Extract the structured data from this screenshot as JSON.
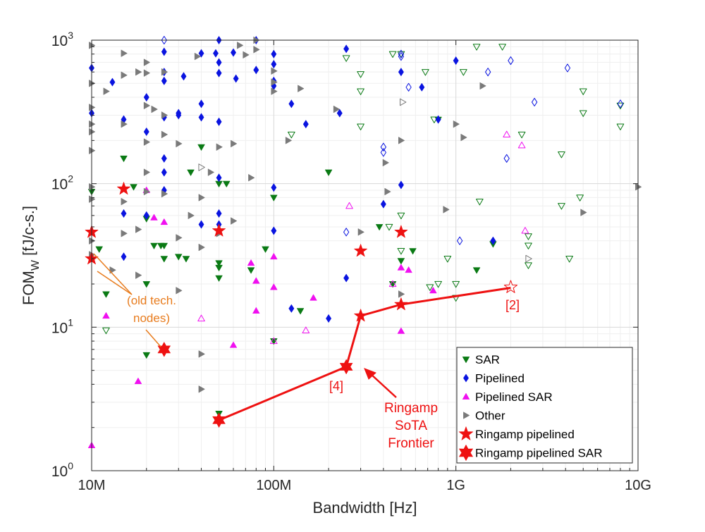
{
  "chart_data": {
    "type": "scatter",
    "title": "",
    "xlabel": "Bandwidth [Hz]",
    "ylabel_main": "FOM",
    "ylabel_sub": "W",
    "ylabel_units": " [fJ/c-s.]",
    "x_scale": "log",
    "y_scale": "log",
    "xlim": [
      10000000,
      10000000000
    ],
    "ylim": [
      1,
      1000
    ],
    "grid": true,
    "x_ticks": [
      {
        "value": 10000000,
        "label": "10M"
      },
      {
        "value": 100000000,
        "label": "100M"
      },
      {
        "value": 1000000000,
        "label": "1G"
      },
      {
        "value": 10000000000,
        "label": "10G"
      }
    ],
    "y_ticks": [
      {
        "value": 1,
        "base": "10",
        "exp": "0"
      },
      {
        "value": 10,
        "base": "10",
        "exp": "1"
      },
      {
        "value": 100,
        "base": "10",
        "exp": "2"
      },
      {
        "value": 1000,
        "base": "10",
        "exp": "3"
      }
    ],
    "legend_position": "bottom-right",
    "series": [
      {
        "name": "SAR",
        "marker": "triangle-down",
        "color": "#0a7a14",
        "points": [
          [
            10000000.0,
            88
          ],
          [
            11000000.0,
            35
          ],
          [
            12000000.0,
            17
          ],
          [
            17000000.0,
            95
          ],
          [
            20000000.0,
            57
          ],
          [
            20000000.0,
            20
          ],
          [
            22000000.0,
            37
          ],
          [
            24000000.0,
            37
          ],
          [
            25000000.0,
            37
          ],
          [
            25000000.0,
            30
          ],
          [
            20000000.0,
            6.4
          ],
          [
            30000000.0,
            31
          ],
          [
            33000000.0,
            30
          ],
          [
            35000000.0,
            120
          ],
          [
            40000000.0,
            180
          ],
          [
            50000000.0,
            28
          ],
          [
            50000000.0,
            26
          ],
          [
            50000000.0,
            22
          ],
          [
            50000000.0,
            2.5
          ],
          [
            50000000.0,
            100
          ],
          [
            55000000.0,
            100
          ],
          [
            75000000.0,
            25
          ],
          [
            90000000.0,
            35
          ],
          [
            100000000.0,
            80
          ],
          [
            100000000.0,
            8
          ],
          [
            140000000.0,
            13
          ],
          [
            200000000.0,
            120
          ],
          [
            380000000.0,
            50
          ],
          [
            450000000.0,
            20
          ],
          [
            500000000.0,
            29
          ],
          [
            580000000.0,
            34
          ],
          [
            800000000.0,
            280
          ],
          [
            1300000000.0,
            25
          ],
          [
            1600000000.0,
            38
          ],
          [
            15000000.0,
            150
          ]
        ],
        "hollow_points": [
          [
            12000000.0,
            9.5
          ],
          [
            125000000.0,
            220
          ],
          [
            250000000.0,
            750
          ],
          [
            300000000.0,
            580
          ],
          [
            300000000.0,
            440
          ],
          [
            300000000.0,
            250
          ],
          [
            450000000.0,
            800
          ],
          [
            500000000.0,
            800
          ],
          [
            500000000.0,
            60
          ],
          [
            500000000.0,
            34
          ],
          [
            680000000.0,
            600
          ],
          [
            720000000.0,
            19
          ],
          [
            760000000.0,
            280
          ],
          [
            800000000.0,
            20
          ],
          [
            900000000.0,
            30
          ],
          [
            1000000000.0,
            20
          ],
          [
            1000000000.0,
            16
          ],
          [
            1100000000.0,
            600
          ],
          [
            1300000000.0,
            900
          ],
          [
            1800000000.0,
            900
          ],
          [
            2300000000.0,
            220
          ],
          [
            2500000000.0,
            43
          ],
          [
            2500000000.0,
            37
          ],
          [
            2500000000.0,
            27
          ],
          [
            3800000000.0,
            160
          ],
          [
            3800000000.0,
            70
          ],
          [
            4200000000.0,
            30
          ],
          [
            4800000000.0,
            80
          ],
          [
            5000000000.0,
            440
          ],
          [
            5000000000.0,
            310
          ],
          [
            8000000000.0,
            250
          ],
          [
            8000000000.0,
            350
          ],
          [
            1350000000.0,
            75
          ],
          [
            430000000.0,
            50
          ]
        ]
      },
      {
        "name": "Pipelined",
        "marker": "diamond",
        "color": "#0a14e0",
        "points": [
          [
            10000000.0,
            640
          ],
          [
            10000000.0,
            310
          ],
          [
            13000000.0,
            510
          ],
          [
            15000000.0,
            280
          ],
          [
            15000000.0,
            62
          ],
          [
            15000000.0,
            31
          ],
          [
            20000000.0,
            400
          ],
          [
            20000000.0,
            60
          ],
          [
            25000000.0,
            830
          ],
          [
            25000000.0,
            600
          ],
          [
            25000000.0,
            520
          ],
          [
            25000000.0,
            290
          ],
          [
            25000000.0,
            150
          ],
          [
            25000000.0,
            120
          ],
          [
            25000000.0,
            90
          ],
          [
            30000000.0,
            310
          ],
          [
            32000000.0,
            560
          ],
          [
            40000000.0,
            810
          ],
          [
            40000000.0,
            360
          ],
          [
            40000000.0,
            290
          ],
          [
            48000000.0,
            810
          ],
          [
            50000000.0,
            1000
          ],
          [
            50000000.0,
            700
          ],
          [
            50000000.0,
            590
          ],
          [
            50000000.0,
            270
          ],
          [
            50000000.0,
            110
          ],
          [
            50000000.0,
            62
          ],
          [
            50000000.0,
            52
          ],
          [
            60000000.0,
            820
          ],
          [
            62000000.0,
            540
          ],
          [
            80000000.0,
            1000
          ],
          [
            80000000.0,
            620
          ],
          [
            100000000.0,
            800
          ],
          [
            100000000.0,
            680
          ],
          [
            100000000.0,
            520
          ],
          [
            100000000.0,
            480
          ],
          [
            100000000.0,
            47
          ],
          [
            100000000.0,
            94
          ],
          [
            125000000.0,
            360
          ],
          [
            125000000.0,
            13.5
          ],
          [
            150000000.0,
            260
          ],
          [
            200000000.0,
            11.5
          ],
          [
            230000000.0,
            310
          ],
          [
            250000000.0,
            870
          ],
          [
            250000000.0,
            22
          ],
          [
            400000000.0,
            72
          ],
          [
            500000000.0,
            600
          ],
          [
            500000000.0,
            98
          ],
          [
            650000000.0,
            470
          ],
          [
            800000000.0,
            280
          ],
          [
            1000000000.0,
            720
          ],
          [
            1600000000.0,
            40
          ],
          [
            40000000.0,
            52
          ],
          [
            20000000.0,
            230
          ],
          [
            30000000.0,
            300
          ]
        ],
        "hollow_points": [
          [
            25000000.0,
            1000
          ],
          [
            400000000.0,
            180
          ],
          [
            400000000.0,
            165
          ],
          [
            500000000.0,
            800
          ],
          [
            500000000.0,
            770
          ],
          [
            550000000.0,
            470
          ],
          [
            1050000000.0,
            40
          ],
          [
            1500000000.0,
            600
          ],
          [
            1900000000.0,
            150
          ],
          [
            2000000000.0,
            720
          ],
          [
            2700000000.0,
            370
          ],
          [
            4100000000.0,
            640
          ],
          [
            8000000000.0,
            360
          ],
          [
            250000000.0,
            46
          ]
        ]
      },
      {
        "name": "Pipelined SAR",
        "marker": "triangle-up",
        "color": "#f010f0",
        "points": [
          [
            10000000.0,
            1.5
          ],
          [
            12000000.0,
            12
          ],
          [
            18000000.0,
            4.2
          ],
          [
            20000000.0,
            90
          ],
          [
            25000000.0,
            54
          ],
          [
            60000000.0,
            7.5
          ],
          [
            75000000.0,
            28
          ],
          [
            80000000.0,
            21
          ],
          [
            80000000.0,
            13
          ],
          [
            100000000.0,
            31
          ],
          [
            100000000.0,
            19
          ],
          [
            165000000.0,
            16
          ],
          [
            500000000.0,
            26
          ],
          [
            500000000.0,
            9.4
          ],
          [
            550000000.0,
            25
          ],
          [
            750000000.0,
            18
          ],
          [
            22000000.0,
            58
          ]
        ],
        "hollow_points": [
          [
            40000000.0,
            11.5
          ],
          [
            100000000.0,
            8
          ],
          [
            150000000.0,
            9.5
          ],
          [
            260000000.0,
            70
          ],
          [
            450000000.0,
            20
          ],
          [
            1900000000.0,
            220
          ],
          [
            2300000000.0,
            185
          ],
          [
            2400000000.0,
            47
          ]
        ]
      },
      {
        "name": "Other",
        "marker": "triangle-right",
        "color": "#7a7a7a",
        "points": [
          [
            10000000.0,
            920
          ],
          [
            10000000.0,
            500
          ],
          [
            10000000.0,
            340
          ],
          [
            10000000.0,
            260
          ],
          [
            10000000.0,
            230
          ],
          [
            10000000.0,
            170
          ],
          [
            10000000.0,
            95
          ],
          [
            10000000.0,
            78
          ],
          [
            10000000.0,
            40
          ],
          [
            10000000.0,
            32
          ],
          [
            12000000.0,
            440
          ],
          [
            13000000.0,
            25
          ],
          [
            15000000.0,
            810
          ],
          [
            15000000.0,
            570
          ],
          [
            15000000.0,
            260
          ],
          [
            15000000.0,
            75
          ],
          [
            15000000.0,
            45
          ],
          [
            18000000.0,
            600
          ],
          [
            18000000.0,
            48
          ],
          [
            18000000.0,
            23
          ],
          [
            20000000.0,
            700
          ],
          [
            20000000.0,
            590
          ],
          [
            20000000.0,
            350
          ],
          [
            20000000.0,
            195
          ],
          [
            20000000.0,
            120
          ],
          [
            20000000.0,
            88
          ],
          [
            22000000.0,
            330
          ],
          [
            25000000.0,
            600
          ],
          [
            25000000.0,
            300
          ],
          [
            25000000.0,
            220
          ],
          [
            25000000.0,
            85
          ],
          [
            30000000.0,
            190
          ],
          [
            30000000.0,
            42
          ],
          [
            30000000.0,
            18
          ],
          [
            35000000.0,
            60
          ],
          [
            38000000.0,
            770
          ],
          [
            40000000.0,
            80
          ],
          [
            40000000.0,
            36
          ],
          [
            40000000.0,
            6.5
          ],
          [
            40000000.0,
            3.7
          ],
          [
            45000000.0,
            120
          ],
          [
            50000000.0,
            180
          ],
          [
            50000000.0,
            45
          ],
          [
            60000000.0,
            190
          ],
          [
            60000000.0,
            55
          ],
          [
            65000000.0,
            920
          ],
          [
            70000000.0,
            790
          ],
          [
            75000000.0,
            110
          ],
          [
            80000000.0,
            1000
          ],
          [
            80000000.0,
            860
          ],
          [
            100000000.0,
            610
          ],
          [
            100000000.0,
            440
          ],
          [
            100000000.0,
            510
          ],
          [
            120000000.0,
            200
          ],
          [
            140000000.0,
            460
          ],
          [
            220000000.0,
            330
          ],
          [
            300000000.0,
            46
          ],
          [
            410000000.0,
            140
          ],
          [
            420000000.0,
            88
          ],
          [
            500000000.0,
            200
          ],
          [
            500000000.0,
            17
          ],
          [
            880000000.0,
            66
          ],
          [
            1000000000.0,
            260
          ],
          [
            1100000000.0,
            210
          ],
          [
            1400000000.0,
            480
          ],
          [
            5000000000.0,
            63
          ],
          [
            10000000000.0,
            95
          ]
        ],
        "hollow_points": [
          [
            510000000.0,
            370
          ],
          [
            40000000.0,
            130
          ],
          [
            2500000000.0,
            30
          ]
        ]
      },
      {
        "name": "Ringamp pipelined",
        "marker": "star",
        "color": "#ee1111",
        "points": [
          [
            15000000.0,
            92
          ],
          [
            10000000.0,
            46
          ],
          [
            10000000.0,
            30
          ],
          [
            50000000.0,
            47
          ],
          [
            300000000.0,
            34
          ],
          [
            500000000.0,
            46
          ]
        ],
        "hollow_points": [
          [
            2000000000.0,
            19
          ]
        ]
      },
      {
        "name": "Ringamp pipelined SAR",
        "marker": "star6",
        "color": "#ee1111",
        "points": [
          [
            25000000.0,
            7
          ]
        ],
        "hollow_points": []
      }
    ],
    "frontier": {
      "label_lines": [
        "Ringamp",
        "SoTA",
        "Frontier"
      ],
      "color": "#ee1111",
      "points": [
        [
          50000000.0,
          2.25
        ],
        [
          250000000.0,
          5.3
        ],
        [
          300000000.0,
          12
        ],
        [
          500000000.0,
          14.4
        ],
        [
          2000000000.0,
          18.8
        ]
      ],
      "marker_types": [
        "star6",
        "star6",
        "star",
        "star",
        "none"
      ]
    },
    "annotations": {
      "ref4": "[4]",
      "ref2": "[2]",
      "old_nodes_lines": [
        "(old tech.",
        "nodes)"
      ],
      "old_nodes_color": "#e87c1e",
      "ref_color": "#ee1111"
    }
  }
}
